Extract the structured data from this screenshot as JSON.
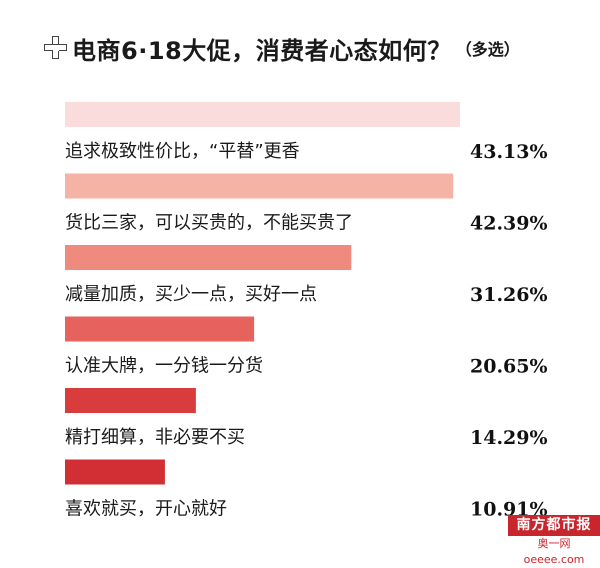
{
  "header": {
    "title": "电商6·18大促，消费者心态如何？",
    "subtitle": "（多选）",
    "icon": "plus-cross-icon"
  },
  "chart_data": {
    "type": "bar",
    "orientation": "horizontal",
    "title": "电商6·18大促，消费者心态如何？",
    "subtitle": "（多选）",
    "categories": [
      "追求极致性价比，“平替”更香",
      "货比三家，可以买贵的，不能买贵了",
      "减量加质，买少一点，买好一点",
      "认准大牌，一分钱一分货",
      "精打细算，非必要不买",
      "喜欢就买，开心就好"
    ],
    "values": [
      43.13,
      42.39,
      31.26,
      20.65,
      14.29,
      10.91
    ],
    "value_labels": [
      "43.13%",
      "42.39%",
      "31.26%",
      "20.65%",
      "14.29%",
      "10.91%"
    ],
    "unit": "%",
    "colors": [
      "#fadcdc",
      "#f4b3a5",
      "#ef8a7e",
      "#e6625c",
      "#d93c3c",
      "#d12f33"
    ],
    "xlim": [
      0,
      43.13
    ],
    "grid": false,
    "legend": "none"
  },
  "watermark": {
    "name": "南方都市报",
    "site": "奥一网oeeee.com"
  }
}
